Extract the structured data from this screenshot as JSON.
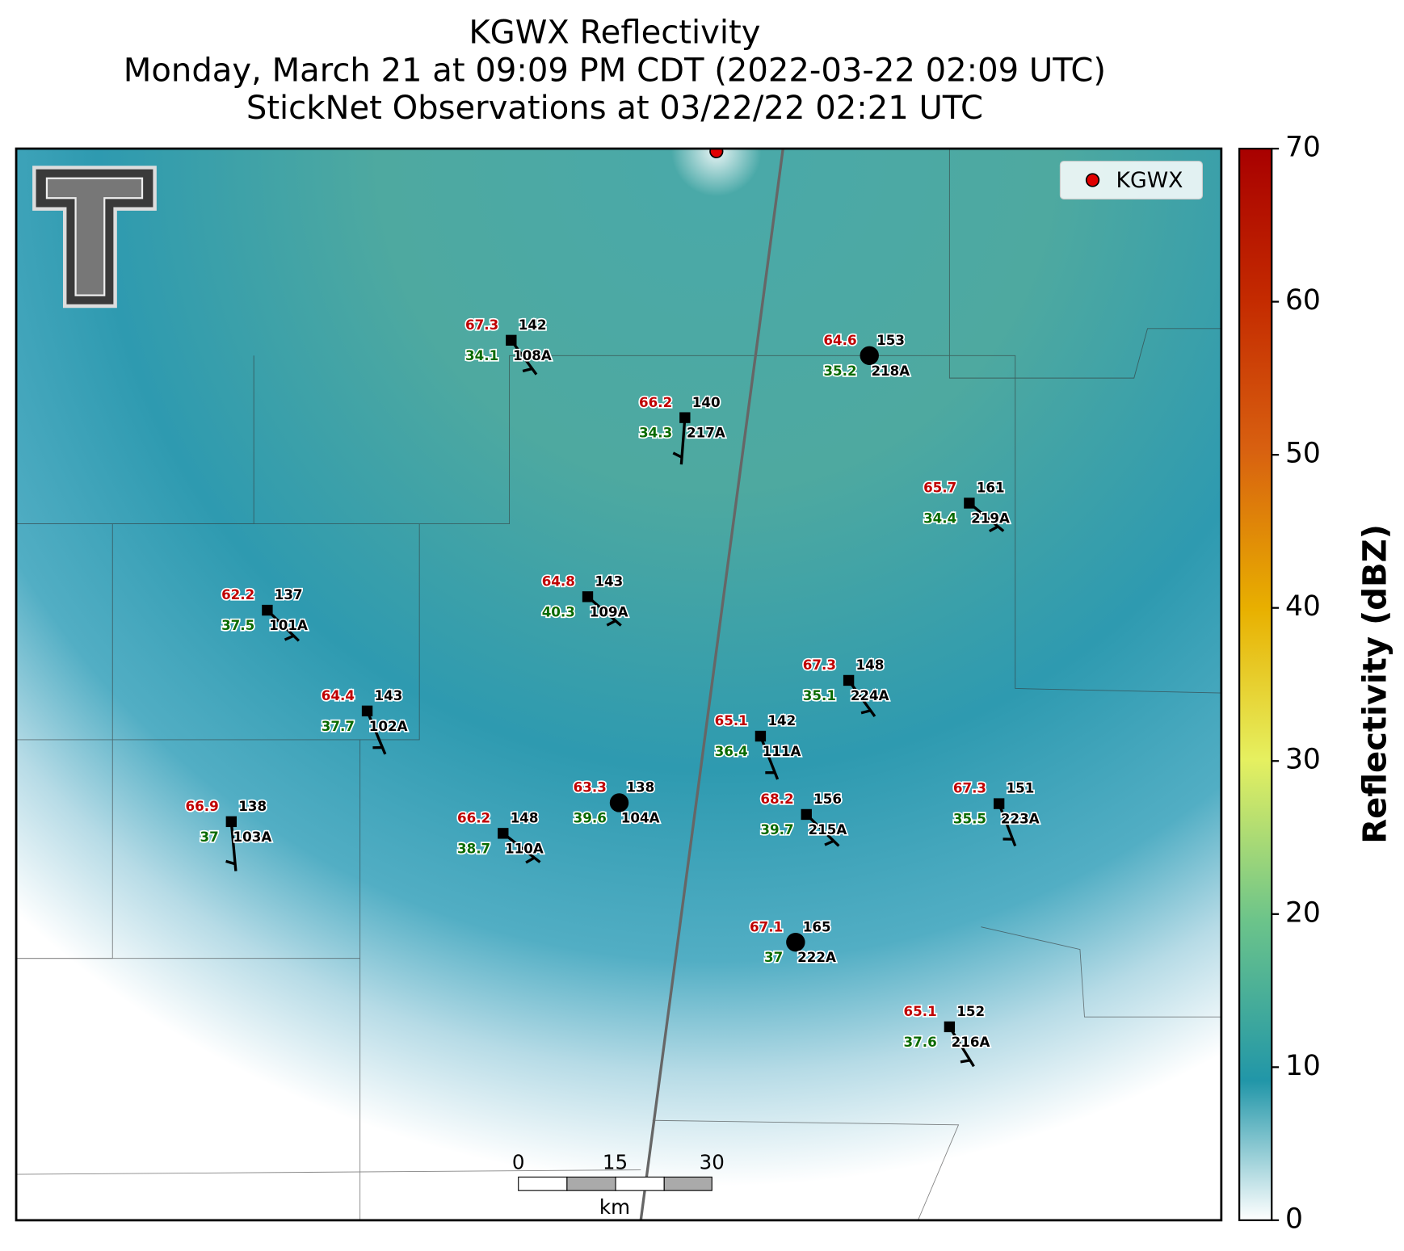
{
  "map": {
    "title": [
      "KGWX Reflectivity",
      "Monday, March 21 at 09:09 PM CDT (2022-03-22 02:09 UTC)",
      "StickNet Observations at 03/22/22 02:21 UTC"
    ],
    "legend": "KGWX",
    "stations": [
      {
        "id": "108A",
        "temp": 67.3,
        "dew": 34.1,
        "value": 142
      },
      {
        "id": "217A",
        "temp": 66.2,
        "dew": 34.3,
        "value": 140
      },
      {
        "id": "218A",
        "temp": 64.6,
        "dew": 35.2,
        "value": 153
      },
      {
        "id": "219A",
        "temp": 65.7,
        "dew": 34.4,
        "value": 161
      },
      {
        "id": "101A",
        "temp": 62.2,
        "dew": 37.5,
        "value": 137
      },
      {
        "id": "109A",
        "temp": 64.8,
        "dew": 40.3,
        "value": 143
      },
      {
        "id": "224A",
        "temp": 67.3,
        "dew": 35.1,
        "value": 148
      },
      {
        "id": "102A",
        "temp": 64.4,
        "dew": 37.7,
        "value": 143
      },
      {
        "id": "111A",
        "temp": 65.1,
        "dew": 36.4,
        "value": 142
      },
      {
        "id": "104A",
        "temp": 63.3,
        "dew": 39.6,
        "value": 138
      },
      {
        "id": "215A",
        "temp": 68.2,
        "dew": 39.7,
        "value": 156
      },
      {
        "id": "223A",
        "temp": 67.3,
        "dew": 35.5,
        "value": 151
      },
      {
        "id": "103A",
        "temp": 66.9,
        "dew": 37.0,
        "value": 138
      },
      {
        "id": "110A",
        "temp": 66.2,
        "dew": 38.7,
        "value": 148
      },
      {
        "id": "222A",
        "temp": 67.1,
        "dew": 37.0,
        "value": 165
      },
      {
        "id": "216A",
        "temp": 65.1,
        "dew": 37.6,
        "value": 152
      }
    ],
    "scale_bar": {
      "ticks": [
        0,
        15,
        30
      ],
      "unit": "km"
    },
    "colorbar": {
      "label": "Reflectivity (dBZ)",
      "lim": [
        0,
        70
      ],
      "ticks": [
        0,
        10,
        20,
        30,
        40,
        50,
        60,
        70
      ]
    }
  }
}
